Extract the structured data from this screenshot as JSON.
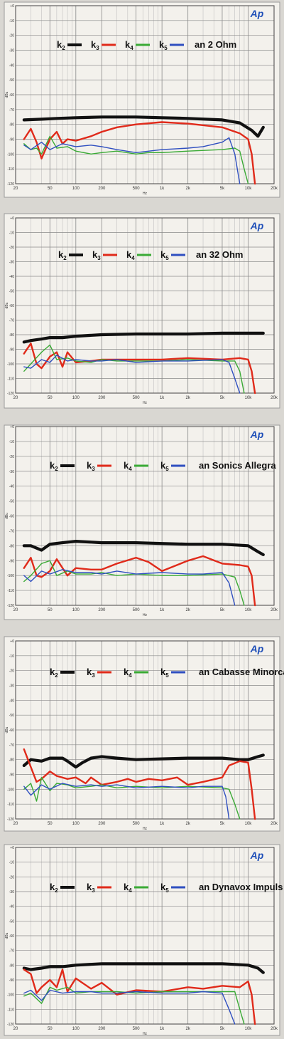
{
  "colors": {
    "k2": "#111111",
    "k3": "#e02a1a",
    "k4": "#3aaa35",
    "k5": "#2f4fc0",
    "logo": "#1f4fb8",
    "grid": "#b8b8b8",
    "paper": "#f3f1ec"
  },
  "logo_text": "Ap",
  "chart_data": [
    {
      "type": "line",
      "label": "an 2 Ohm",
      "xlabel": "Hz",
      "ylabel": "dBu",
      "xscale": "log",
      "xlim": [
        20,
        20000
      ],
      "ylim": [
        -120,
        0
      ],
      "xticks": [
        "20",
        "50",
        "100",
        "200",
        "500",
        "1k",
        "2k",
        "5k",
        "10k",
        "20k"
      ],
      "yticks": [
        "+0",
        "-10",
        "-20",
        "-30",
        "-40",
        "-50",
        "-60",
        "-70",
        "-80",
        "-90",
        "-100",
        "-110",
        "-120"
      ],
      "legend": [
        "k2",
        "k3",
        "k4",
        "k5"
      ],
      "series": [
        {
          "name": "k2",
          "x": [
            25,
            40,
            60,
            100,
            200,
            500,
            1000,
            2000,
            5000,
            8000,
            11000,
            13000,
            15000
          ],
          "y": [
            -77,
            -76.5,
            -76,
            -75.5,
            -75,
            -75,
            -75.5,
            -76,
            -77,
            -79,
            -84,
            -88,
            -82
          ]
        },
        {
          "name": "k3",
          "x": [
            25,
            30,
            35,
            40,
            50,
            60,
            70,
            80,
            100,
            150,
            200,
            300,
            500,
            1000,
            2000,
            5000,
            8000,
            10000,
            11000,
            12000
          ],
          "y": [
            -90,
            -83,
            -92,
            -103,
            -90,
            -85,
            -93,
            -90,
            -91,
            -88,
            -85,
            -82,
            -80,
            -78.5,
            -79.5,
            -82,
            -86,
            -90,
            -100,
            -120
          ]
        },
        {
          "name": "k4",
          "x": [
            25,
            30,
            35,
            40,
            50,
            60,
            80,
            100,
            150,
            200,
            300,
            500,
            700,
            1000,
            2000,
            5000,
            7000,
            8000,
            9000,
            10000
          ],
          "y": [
            -93,
            -97,
            -96,
            -100,
            -88,
            -96,
            -95,
            -98,
            -100,
            -99,
            -98,
            -100,
            -99,
            -99,
            -98,
            -97,
            -96,
            -98,
            -110,
            -120
          ]
        },
        {
          "name": "k5",
          "x": [
            25,
            30,
            40,
            50,
            70,
            100,
            150,
            200,
            300,
            500,
            1000,
            2000,
            3000,
            5000,
            6000,
            7000,
            8000
          ],
          "y": [
            -94,
            -97,
            -92,
            -97,
            -93,
            -95,
            -94,
            -95,
            -97,
            -99,
            -97,
            -96,
            -95,
            -92,
            -89,
            -100,
            -120
          ]
        }
      ]
    },
    {
      "type": "line",
      "label": "an 32 Ohm",
      "xlabel": "Hz",
      "ylabel": "dBu",
      "xscale": "log",
      "xlim": [
        20,
        20000
      ],
      "ylim": [
        -120,
        0
      ],
      "xticks": [
        "20",
        "50",
        "100",
        "200",
        "500",
        "1k",
        "2k",
        "5k",
        "10k",
        "20k"
      ],
      "yticks": [
        "+0",
        "-10",
        "-20",
        "-30",
        "-40",
        "-50",
        "-60",
        "-70",
        "-80",
        "-90",
        "-100",
        "-110",
        "-120"
      ],
      "legend": [
        "k2",
        "k3",
        "k4",
        "k5"
      ],
      "series": [
        {
          "name": "k2",
          "x": [
            25,
            30,
            40,
            50,
            70,
            100,
            200,
            500,
            1000,
            2000,
            5000,
            10000,
            15000
          ],
          "y": [
            -85,
            -84,
            -83,
            -82,
            -82,
            -81,
            -80,
            -79.5,
            -79.5,
            -79.5,
            -79,
            -79,
            -79
          ]
        },
        {
          "name": "k3",
          "x": [
            25,
            30,
            35,
            40,
            50,
            60,
            70,
            80,
            100,
            150,
            200,
            300,
            500,
            1000,
            2000,
            5000,
            8000,
            10000,
            11000,
            12000
          ],
          "y": [
            -93,
            -86,
            -100,
            -103,
            -95,
            -92,
            -102,
            -92,
            -99,
            -98,
            -97,
            -97,
            -97,
            -97,
            -96,
            -97,
            -96,
            -97,
            -105,
            -120
          ]
        },
        {
          "name": "k4",
          "x": [
            25,
            30,
            40,
            50,
            60,
            80,
            100,
            150,
            200,
            300,
            500,
            1000,
            2000,
            5000,
            7000,
            8000,
            9000
          ],
          "y": [
            -105,
            -100,
            -92,
            -87,
            -97,
            -96,
            -98,
            -99,
            -97,
            -98,
            -98,
            -98,
            -97,
            -98,
            -98,
            -105,
            -120
          ]
        },
        {
          "name": "k5",
          "x": [
            25,
            30,
            40,
            50,
            60,
            80,
            100,
            150,
            200,
            300,
            500,
            1000,
            2000,
            5000,
            6000,
            7000,
            8000
          ],
          "y": [
            -102,
            -103,
            -97,
            -99,
            -94,
            -98,
            -97,
            -98,
            -98,
            -97,
            -99,
            -98,
            -98,
            -97,
            -99,
            -110,
            -120
          ]
        }
      ]
    },
    {
      "type": "line",
      "label": "an Sonics Allegra",
      "xlabel": "Hz",
      "ylabel": "dBu",
      "xscale": "log",
      "xlim": [
        20,
        20000
      ],
      "ylim": [
        -120,
        0
      ],
      "xticks": [
        "20",
        "50",
        "100",
        "200",
        "500",
        "1k",
        "2k",
        "5k",
        "10k",
        "20k"
      ],
      "yticks": [
        "+0",
        "-10",
        "-20",
        "-30",
        "-40",
        "-50",
        "-60",
        "-70",
        "-80",
        "-90",
        "-100",
        "-110",
        "-120"
      ],
      "legend": [
        "k2",
        "k3",
        "k4",
        "k5"
      ],
      "series": [
        {
          "name": "k2",
          "x": [
            25,
            30,
            40,
            50,
            70,
            100,
            200,
            500,
            1000,
            2000,
            5000,
            10000,
            13000,
            15000
          ],
          "y": [
            -80,
            -80,
            -83,
            -79,
            -78,
            -77,
            -78,
            -78,
            -78.5,
            -79,
            -79,
            -80,
            -84,
            -86
          ]
        },
        {
          "name": "k3",
          "x": [
            25,
            30,
            35,
            40,
            50,
            60,
            80,
            100,
            150,
            200,
            300,
            500,
            700,
            1000,
            2000,
            3000,
            5000,
            8000,
            10000,
            11000,
            12000
          ],
          "y": [
            -95,
            -88,
            -100,
            -101,
            -97,
            -89,
            -100,
            -95,
            -96,
            -96,
            -92,
            -88,
            -91,
            -97,
            -90,
            -87,
            -92,
            -93,
            -94,
            -100,
            -120
          ]
        },
        {
          "name": "k4",
          "x": [
            25,
            30,
            40,
            50,
            60,
            80,
            100,
            150,
            200,
            300,
            500,
            1000,
            2000,
            5000,
            7000,
            8000,
            9000
          ],
          "y": [
            -104,
            -100,
            -92,
            -90,
            -100,
            -97,
            -99,
            -99,
            -98,
            -100,
            -99,
            -100,
            -100,
            -99,
            -101,
            -110,
            -120
          ]
        },
        {
          "name": "k5",
          "x": [
            25,
            30,
            40,
            50,
            70,
            100,
            150,
            200,
            300,
            500,
            1000,
            2000,
            3000,
            5000,
            6000,
            7000
          ],
          "y": [
            -100,
            -104,
            -97,
            -99,
            -96,
            -98,
            -98,
            -99,
            -97,
            -99,
            -98,
            -99,
            -99,
            -98,
            -105,
            -120
          ]
        }
      ]
    },
    {
      "type": "line",
      "label": "an Cabasse Minorca",
      "xlabel": "Hz",
      "ylabel": "dBu",
      "xscale": "log",
      "xlim": [
        20,
        20000
      ],
      "ylim": [
        -120,
        0
      ],
      "xticks": [
        "20",
        "50",
        "100",
        "200",
        "500",
        "1k",
        "2k",
        "5k",
        "10k",
        "20k"
      ],
      "yticks": [
        "+0",
        "-10",
        "-20",
        "-30",
        "-40",
        "-50",
        "-60",
        "-70",
        "-80",
        "-90",
        "-100",
        "-110",
        "-120"
      ],
      "legend": [
        "k2",
        "k3",
        "k4",
        "k5"
      ],
      "series": [
        {
          "name": "k2",
          "x": [
            25,
            30,
            40,
            50,
            70,
            80,
            100,
            120,
            150,
            200,
            300,
            500,
            1000,
            2000,
            5000,
            8000,
            10000,
            13000,
            15000
          ],
          "y": [
            -84,
            -80,
            -81,
            -79,
            -79,
            -81,
            -85,
            -82,
            -79,
            -78,
            -79,
            -80,
            -79.5,
            -79,
            -79,
            -80,
            -80,
            -78,
            -77
          ]
        },
        {
          "name": "k3",
          "x": [
            25,
            30,
            35,
            40,
            50,
            60,
            80,
            100,
            130,
            150,
            200,
            300,
            400,
            500,
            700,
            1000,
            1500,
            2000,
            3000,
            5000,
            6000,
            8000,
            10000,
            11000,
            12000
          ],
          "y": [
            -73,
            -85,
            -95,
            -93,
            -88,
            -91,
            -93,
            -92,
            -96,
            -92,
            -97,
            -95,
            -93,
            -95,
            -93,
            -94,
            -92,
            -97,
            -95,
            -92,
            -84,
            -81,
            -82,
            -100,
            -120
          ]
        },
        {
          "name": "k4",
          "x": [
            25,
            30,
            35,
            40,
            50,
            60,
            80,
            100,
            150,
            200,
            300,
            500,
            1000,
            2000,
            5000,
            6000,
            7000,
            8000
          ],
          "y": [
            -100,
            -96,
            -108,
            -92,
            -101,
            -96,
            -97,
            -99,
            -98,
            -97,
            -99,
            -98,
            -99,
            -98,
            -99,
            -100,
            -110,
            -120
          ]
        },
        {
          "name": "k5",
          "x": [
            25,
            30,
            40,
            50,
            70,
            100,
            150,
            200,
            300,
            500,
            1000,
            2000,
            3000,
            5000,
            5500,
            6000
          ],
          "y": [
            -98,
            -104,
            -97,
            -100,
            -96,
            -98,
            -97,
            -98,
            -97,
            -99,
            -98,
            -99,
            -98,
            -98,
            -105,
            -120
          ]
        }
      ]
    },
    {
      "type": "line",
      "label": "an Dynavox Impuls",
      "xlabel": "Hz",
      "ylabel": "dBu",
      "xscale": "log",
      "xlim": [
        20,
        20000
      ],
      "ylim": [
        -120,
        0
      ],
      "xticks": [
        "20",
        "50",
        "100",
        "200",
        "500",
        "1k",
        "2k",
        "5k",
        "10k",
        "20k"
      ],
      "yticks": [
        "+0",
        "-10",
        "-20",
        "-30",
        "-40",
        "-50",
        "-60",
        "-70",
        "-80",
        "-90",
        "-100",
        "-110",
        "-120"
      ],
      "legend": [
        "k2",
        "k3",
        "k4",
        "k5"
      ],
      "series": [
        {
          "name": "k2",
          "x": [
            25,
            30,
            40,
            50,
            70,
            100,
            200,
            500,
            1000,
            2000,
            5000,
            10000,
            13000,
            15000
          ],
          "y": [
            -82,
            -83,
            -82,
            -81,
            -81,
            -80,
            -79,
            -79,
            -79,
            -79,
            -79,
            -80,
            -82,
            -85
          ]
        },
        {
          "name": "k3",
          "x": [
            25,
            30,
            35,
            40,
            50,
            60,
            70,
            80,
            100,
            150,
            200,
            300,
            500,
            1000,
            2000,
            3000,
            5000,
            8000,
            10000,
            11000,
            12000
          ],
          "y": [
            -83,
            -86,
            -99,
            -95,
            -90,
            -95,
            -83,
            -98,
            -89,
            -96,
            -92,
            -100,
            -97,
            -98,
            -95,
            -96,
            -94,
            -95,
            -91,
            -100,
            -120
          ]
        },
        {
          "name": "k4",
          "x": [
            25,
            30,
            40,
            50,
            60,
            80,
            100,
            150,
            200,
            300,
            500,
            1000,
            2000,
            5000,
            7000,
            8000,
            9000
          ],
          "y": [
            -101,
            -99,
            -106,
            -95,
            -97,
            -95,
            -99,
            -98,
            -98,
            -98,
            -99,
            -98,
            -98,
            -98,
            -98,
            -110,
            -120
          ]
        },
        {
          "name": "k5",
          "x": [
            25,
            30,
            40,
            50,
            70,
            100,
            150,
            200,
            300,
            500,
            1000,
            2000,
            3000,
            5000,
            6000,
            7000
          ],
          "y": [
            -99,
            -97,
            -104,
            -97,
            -99,
            -98,
            -98,
            -99,
            -99,
            -98,
            -99,
            -99,
            -98,
            -99,
            -110,
            -120
          ]
        }
      ]
    }
  ]
}
